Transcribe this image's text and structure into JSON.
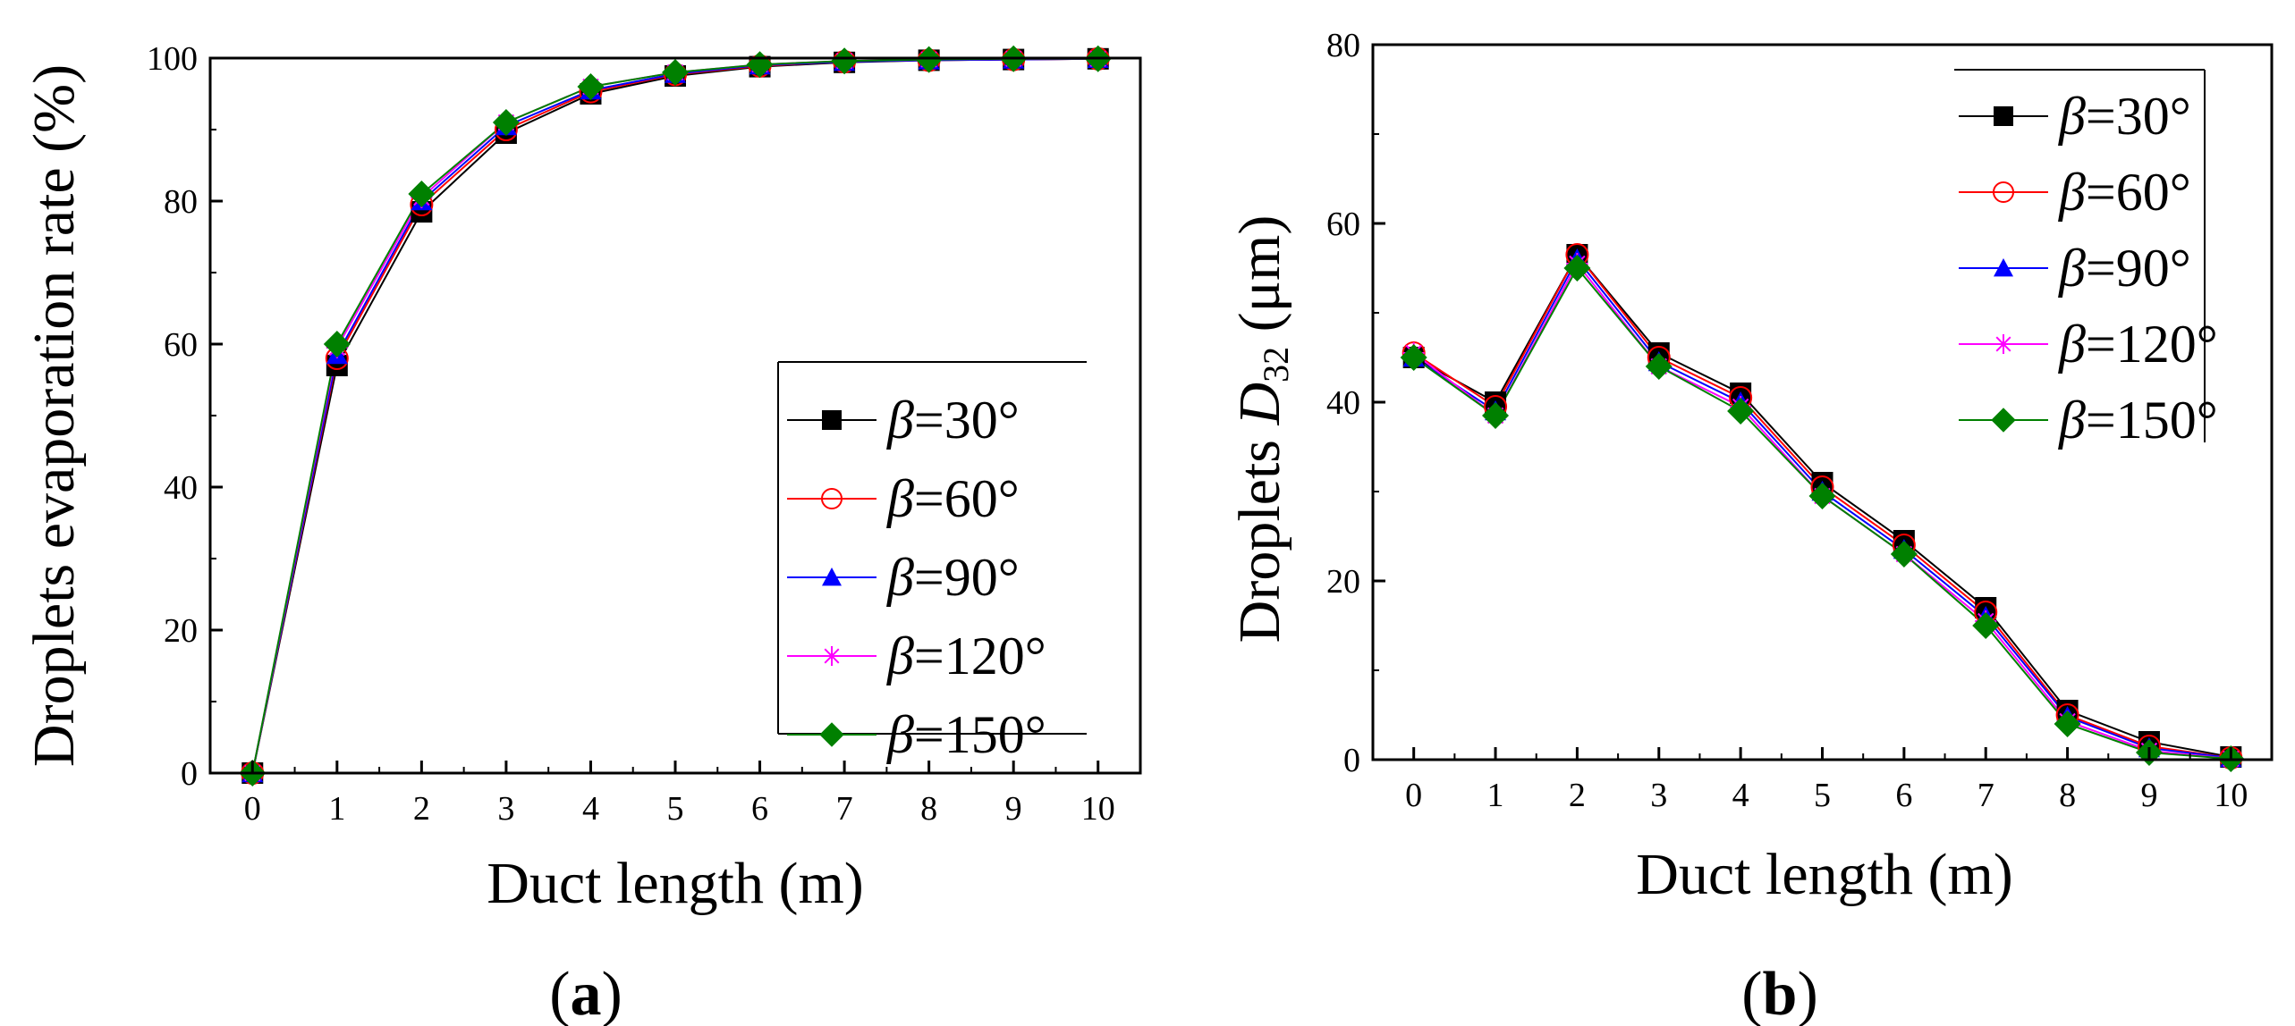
{
  "chart_data": [
    {
      "type": "line",
      "panel_label": "(a)",
      "panel_paren_open": "(",
      "panel_letter": "a",
      "panel_paren_close": ")",
      "xlabel": "Duct length (m)",
      "ylabel": "Droplets evaporation rate (%)",
      "xlim": [
        -0.5,
        10.5
      ],
      "ylim": [
        0,
        100
      ],
      "x_ticks": [
        0,
        1,
        2,
        3,
        4,
        5,
        6,
        7,
        8,
        9,
        10
      ],
      "y_ticks": [
        0,
        20,
        40,
        60,
        80,
        100
      ],
      "legend_position": "lower-right",
      "x": [
        0,
        1,
        2,
        3,
        4,
        5,
        6,
        7,
        8,
        9,
        10
      ],
      "series": [
        {
          "name": "β=30°",
          "symbol": "β",
          "value_text": "=30°",
          "color": "#000000",
          "marker": "square-filled",
          "values": [
            0,
            57,
            78.5,
            89.5,
            95,
            97.5,
            98.8,
            99.4,
            99.7,
            99.8,
            99.9
          ]
        },
        {
          "name": "β=60°",
          "symbol": "β",
          "value_text": "=60°",
          "color": "#ff0000",
          "marker": "circle-open",
          "values": [
            0,
            58,
            79.5,
            90,
            95.3,
            97.7,
            98.9,
            99.5,
            99.7,
            99.8,
            99.9
          ]
        },
        {
          "name": "β=90°",
          "symbol": "β",
          "value_text": "=90°",
          "color": "#0000ff",
          "marker": "triangle-filled",
          "values": [
            0,
            58.5,
            80,
            90.5,
            95.5,
            97.8,
            99,
            99.5,
            99.7,
            99.8,
            99.9
          ]
        },
        {
          "name": "β=120°",
          "symbol": "β",
          "value_text": "=120°",
          "color": "#ff00ff",
          "marker": "asterisk",
          "values": [
            0,
            59.5,
            80.5,
            91,
            96,
            98,
            99.1,
            99.6,
            99.8,
            99.9,
            99.9
          ]
        },
        {
          "name": "β=150°",
          "symbol": "β",
          "value_text": "=150°",
          "color": "#008000",
          "marker": "diamond-filled",
          "values": [
            0,
            60,
            81,
            91,
            96,
            98,
            99.1,
            99.6,
            99.8,
            99.9,
            99.9
          ]
        }
      ]
    },
    {
      "type": "line",
      "panel_label": "(b)",
      "panel_paren_open": "(",
      "panel_letter": "b",
      "panel_paren_close": ")",
      "xlabel": "Duct length (m)",
      "ylabel_prefix": "Droplets",
      "ylabel_symbol": "D",
      "ylabel_subscript": "32",
      "ylabel_unit": "(μm)",
      "xlim": [
        -0.5,
        10.5
      ],
      "ylim": [
        0,
        80
      ],
      "x_ticks": [
        0,
        1,
        2,
        3,
        4,
        5,
        6,
        7,
        8,
        9,
        10
      ],
      "y_ticks": [
        0,
        20,
        40,
        60,
        80
      ],
      "legend_position": "top-right",
      "x": [
        0,
        1,
        2,
        3,
        4,
        5,
        6,
        7,
        8,
        9,
        10
      ],
      "series": [
        {
          "name": "β=30°",
          "symbol": "β",
          "value_text": "=30°",
          "color": "#000000",
          "marker": "square-filled",
          "values": [
            45,
            40,
            56.5,
            45.5,
            41,
            31,
            24.5,
            17,
            5.5,
            2,
            0.3
          ]
        },
        {
          "name": "β=60°",
          "symbol": "β",
          "value_text": "=60°",
          "color": "#ff0000",
          "marker": "circle-open",
          "values": [
            45.5,
            39.5,
            56.5,
            45,
            40.5,
            30.5,
            24,
            16.5,
            5,
            1.5,
            0.2
          ]
        },
        {
          "name": "β=90°",
          "symbol": "β",
          "value_text": "=90°",
          "color": "#0000ff",
          "marker": "triangle-filled",
          "values": [
            45,
            39,
            56,
            44.5,
            40,
            30,
            23.5,
            16,
            4.8,
            1.3,
            0.2
          ]
        },
        {
          "name": "β=120°",
          "symbol": "β",
          "value_text": "=120°",
          "color": "#ff00ff",
          "marker": "asterisk",
          "values": [
            45.5,
            38.5,
            55.5,
            44,
            39.5,
            29.5,
            23,
            15.5,
            4.3,
            1,
            0.1
          ]
        },
        {
          "name": "β=150°",
          "symbol": "β",
          "value_text": "=150°",
          "color": "#008000",
          "marker": "diamond-filled",
          "values": [
            45,
            38.5,
            55,
            44,
            39,
            29.5,
            23,
            15,
            4,
            0.8,
            0.1
          ]
        }
      ]
    }
  ]
}
